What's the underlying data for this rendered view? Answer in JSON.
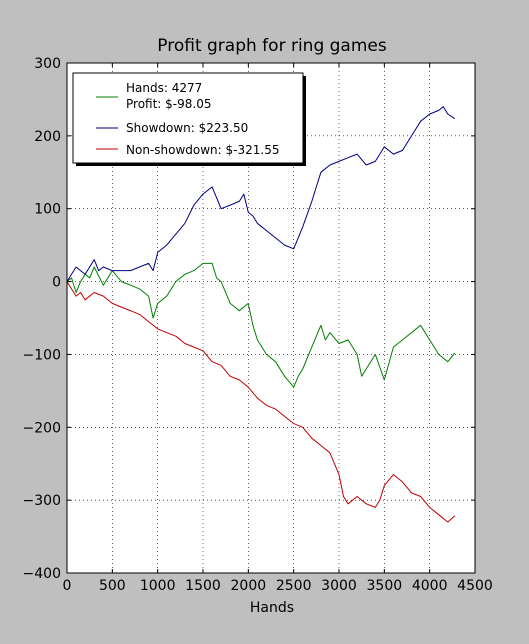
{
  "chart_data": {
    "type": "line",
    "title": "Profit graph for ring games",
    "xlabel": "Hands",
    "ylabel": "",
    "xlim": [
      0,
      4500
    ],
    "ylim": [
      -400,
      300
    ],
    "xticks": [
      "0",
      "500",
      "1000",
      "1500",
      "2000",
      "2500",
      "3000",
      "3500",
      "4000",
      "4500"
    ],
    "yticks": [
      "300",
      "200",
      "100",
      "0",
      "−100",
      "−200",
      "−300",
      "−400"
    ],
    "grid": true,
    "legend_position": "top-left",
    "legend": {
      "hands_line": "Hands: 4277",
      "profit_line": "Profit: $-98.05",
      "showdown": "Showdown: $223.50",
      "nonshowdown": "Non-showdown: $-321.55"
    },
    "colors": {
      "profit": "#007f00",
      "showdown": "#00007f",
      "nonshowdown": "#bf0000"
    },
    "series": [
      {
        "name": "Profit: $-98.05",
        "color": "#007f00",
        "x": [
          0,
          50,
          100,
          150,
          200,
          250,
          300,
          400,
          500,
          600,
          700,
          800,
          900,
          950,
          1000,
          1100,
          1200,
          1300,
          1400,
          1500,
          1600,
          1650,
          1700,
          1800,
          1900,
          2000,
          2050,
          2100,
          2200,
          2300,
          2400,
          2500,
          2550,
          2600,
          2700,
          2800,
          2850,
          2900,
          3000,
          3100,
          3200,
          3250,
          3300,
          3400,
          3500,
          3600,
          3700,
          3800,
          3900,
          4000,
          4100,
          4200,
          4277
        ],
        "y": [
          0,
          5,
          -15,
          0,
          10,
          5,
          20,
          -5,
          15,
          0,
          -5,
          -10,
          -20,
          -50,
          -30,
          -20,
          0,
          10,
          15,
          25,
          25,
          5,
          0,
          -30,
          -40,
          -30,
          -60,
          -80,
          -100,
          -110,
          -130,
          -145,
          -130,
          -120,
          -90,
          -60,
          -80,
          -70,
          -85,
          -80,
          -100,
          -130,
          -120,
          -100,
          -135,
          -90,
          -80,
          -70,
          -60,
          -80,
          -100,
          -110,
          -98
        ]
      },
      {
        "name": "Showdown: $223.50",
        "color": "#00007f",
        "x": [
          0,
          50,
          100,
          150,
          200,
          250,
          300,
          350,
          400,
          500,
          600,
          700,
          800,
          900,
          950,
          1000,
          1100,
          1200,
          1300,
          1400,
          1500,
          1600,
          1650,
          1700,
          1800,
          1900,
          1950,
          2000,
          2050,
          2100,
          2200,
          2300,
          2400,
          2500,
          2600,
          2700,
          2750,
          2800,
          2900,
          3000,
          3100,
          3200,
          3300,
          3400,
          3500,
          3600,
          3700,
          3800,
          3900,
          4000,
          4100,
          4150,
          4200,
          4277
        ],
        "y": [
          0,
          10,
          20,
          15,
          10,
          20,
          30,
          15,
          20,
          15,
          15,
          15,
          20,
          25,
          15,
          40,
          50,
          65,
          80,
          105,
          120,
          130,
          115,
          100,
          105,
          110,
          120,
          95,
          90,
          80,
          70,
          60,
          50,
          45,
          75,
          110,
          130,
          150,
          160,
          165,
          170,
          175,
          160,
          165,
          185,
          175,
          180,
          200,
          220,
          230,
          235,
          240,
          230,
          223.5
        ]
      },
      {
        "name": "Non-showdown: $-321.55",
        "color": "#bf0000",
        "x": [
          0,
          50,
          100,
          150,
          200,
          300,
          400,
          500,
          600,
          700,
          800,
          900,
          1000,
          1100,
          1200,
          1300,
          1400,
          1500,
          1600,
          1700,
          1800,
          1900,
          2000,
          2100,
          2200,
          2300,
          2400,
          2500,
          2600,
          2700,
          2800,
          2900,
          3000,
          3050,
          3100,
          3200,
          3300,
          3400,
          3450,
          3500,
          3600,
          3700,
          3800,
          3900,
          4000,
          4100,
          4150,
          4200,
          4277
        ],
        "y": [
          0,
          -10,
          -20,
          -15,
          -25,
          -15,
          -20,
          -30,
          -35,
          -40,
          -45,
          -55,
          -65,
          -70,
          -75,
          -85,
          -90,
          -95,
          -110,
          -115,
          -130,
          -135,
          -145,
          -160,
          -170,
          -175,
          -185,
          -195,
          -200,
          -215,
          -225,
          -235,
          -265,
          -295,
          -305,
          -295,
          -305,
          -310,
          -300,
          -280,
          -265,
          -275,
          -290,
          -295,
          -310,
          -320,
          -325,
          -330,
          -321.55
        ]
      }
    ]
  }
}
